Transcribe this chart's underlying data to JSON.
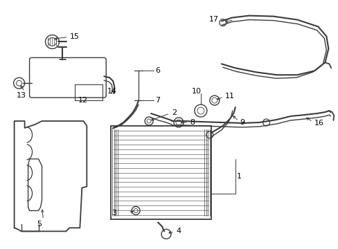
{
  "background": "#ffffff",
  "line_color": "#3a3a3a",
  "text_color": "#000000",
  "fig_width": 4.89,
  "fig_height": 3.6,
  "dpi": 100
}
